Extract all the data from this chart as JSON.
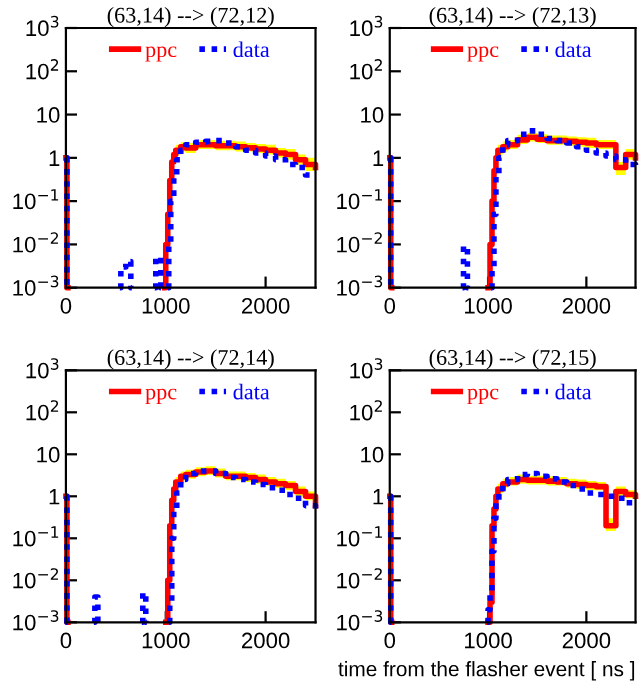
{
  "chart_data": [
    {
      "type": "step",
      "title": "(63,14) --> (72,12)",
      "xlim": [
        0,
        2500
      ],
      "xticks": [
        0,
        1000,
        2000
      ],
      "ylim": [
        0.001,
        1000
      ],
      "log": true,
      "legend": "top",
      "yticks": [
        {
          "value": 0.001,
          "label": "10$^{−3}$"
        },
        {
          "value": 0.01,
          "label": "10$^{−2}$"
        },
        {
          "value": 0.1,
          "label": "10$^{−1}$"
        },
        1,
        10,
        {
          "value": 100,
          "label": "10$^{2}$"
        },
        {
          "value": 1000,
          "label": "10$^{3}$"
        }
      ],
      "series": [
        {
          "name": "ppc",
          "color": "#ff0000",
          "line_style": "solid",
          "x": [
            0,
            10,
            20,
            990,
            1000,
            1020,
            1040,
            1060,
            1080,
            1100,
            1150,
            1200,
            1300,
            1400,
            1500,
            1600,
            1700,
            1800,
            1900,
            2000,
            2100,
            2200,
            2300,
            2400,
            2500
          ],
          "values": [
            1,
            0.001,
            null,
            0.001,
            0.01,
            0.05,
            0.3,
            0.8,
            1.2,
            1.5,
            1.8,
            1.7,
            2,
            2,
            1.9,
            1.9,
            1.8,
            1.7,
            1.6,
            1.5,
            1.3,
            1.2,
            0.9,
            0.7,
            0.6
          ],
          "lower": [
            null,
            null,
            null,
            null,
            null,
            null,
            0.2,
            0.6,
            0.9,
            1.2,
            1.4,
            1.3,
            1.6,
            1.6,
            1.5,
            1.5,
            1.4,
            1.4,
            1.3,
            1.2,
            1,
            0.9,
            0.7,
            0.5,
            0.4
          ],
          "upper": [
            null,
            null,
            null,
            null,
            null,
            null,
            0.4,
            1,
            1.6,
            2,
            2.3,
            2.2,
            2.6,
            2.6,
            2.5,
            2.5,
            2.4,
            2.2,
            2.1,
            2,
            1.7,
            1.6,
            1.2,
            1,
            0.8
          ]
        },
        {
          "name": "data",
          "color": "#0000ff",
          "line_style": "dotted",
          "x": [
            0,
            10,
            20,
            540,
            550,
            600,
            650,
            660,
            890,
            900,
            950,
            960,
            1020,
            1030,
            1050,
            1080,
            1110,
            1150,
            1200,
            1300,
            1400,
            1500,
            1600,
            1700,
            1800,
            1900,
            2000,
            2100,
            2200,
            2300,
            2400,
            2500
          ],
          "values": [
            1,
            0.001,
            null,
            0.001,
            0.003,
            0.004,
            0.001,
            null,
            0.001,
            0.005,
            0.001,
            null,
            0.001,
            0.01,
            0.1,
            0.4,
            0.9,
            1.5,
            2,
            2.3,
            2.4,
            2.5,
            2.2,
            1.8,
            1.5,
            1.3,
            1.1,
            0.9,
            0.7,
            0.6,
            0.4,
            0.4
          ]
        }
      ]
    },
    {
      "type": "step",
      "title": "(63,14) --> (72,13)",
      "xlim": [
        0,
        2500
      ],
      "xticks": [
        0,
        1000,
        2000
      ],
      "ylim": [
        0.001,
        1000
      ],
      "log": true,
      "legend": "top",
      "yticks": [
        {
          "value": 0.001,
          "label": "10$^{−3}$"
        },
        {
          "value": 0.01,
          "label": "10$^{−2}$"
        },
        {
          "value": 0.1,
          "label": "10$^{−1}$"
        },
        1,
        10,
        {
          "value": 100,
          "label": "10$^{2}$"
        },
        {
          "value": 1000,
          "label": "10$^{3}$"
        }
      ],
      "series": [
        {
          "name": "ppc",
          "color": "#ff0000",
          "line_style": "solid",
          "x": [
            0,
            10,
            20,
            1000,
            1020,
            1040,
            1060,
            1080,
            1100,
            1150,
            1200,
            1300,
            1400,
            1500,
            1600,
            1700,
            1800,
            1900,
            2000,
            2100,
            2200,
            2300,
            2400,
            2500
          ],
          "values": [
            1,
            0.001,
            null,
            0.001,
            0.01,
            0.1,
            0.5,
            1,
            1.5,
            1.8,
            2,
            2.6,
            3,
            2.7,
            2.5,
            2.5,
            2.4,
            2.3,
            2.2,
            2,
            2,
            0.6,
            1.2,
            1
          ],
          "lower": [
            null,
            null,
            null,
            null,
            null,
            0.07,
            0.4,
            0.8,
            1.2,
            1.4,
            1.6,
            2.1,
            2.4,
            2.2,
            2,
            2,
            1.9,
            1.8,
            1.7,
            1.6,
            1.6,
            0.4,
            0.9,
            0.8
          ],
          "upper": [
            null,
            null,
            null,
            null,
            null,
            0.15,
            0.7,
            1.4,
            2,
            2.4,
            2.6,
            3.4,
            3.8,
            3.5,
            3.3,
            3.3,
            3.1,
            3,
            2.9,
            2.6,
            2.6,
            0.8,
            1.6,
            1.3
          ]
        },
        {
          "name": "data",
          "color": "#0000ff",
          "line_style": "dotted",
          "x": [
            0,
            10,
            20,
            740,
            750,
            790,
            800,
            1030,
            1040,
            1060,
            1080,
            1110,
            1150,
            1200,
            1300,
            1400,
            1500,
            1600,
            1700,
            1800,
            1900,
            2000,
            2100,
            2200,
            2300,
            2400,
            2500
          ],
          "values": [
            1,
            0.001,
            null,
            0.001,
            0.009,
            0.001,
            null,
            0.001,
            0.003,
            0.05,
            0.4,
            1,
            2,
            2.5,
            3.5,
            4.2,
            3.5,
            2.8,
            2.5,
            2.2,
            1.8,
            1.5,
            1.3,
            1.1,
            0.9,
            0.7,
            0.6
          ]
        }
      ]
    },
    {
      "type": "step",
      "title": "(63,14) --> (72,14)",
      "xlim": [
        0,
        2500
      ],
      "xticks": [
        0,
        1000,
        2000
      ],
      "ylim": [
        0.001,
        1000
      ],
      "log": true,
      "legend": "top",
      "yticks": [
        {
          "value": 0.001,
          "label": "10$^{−3}$"
        },
        {
          "value": 0.01,
          "label": "10$^{−2}$"
        },
        {
          "value": 0.1,
          "label": "10$^{−1}$"
        },
        1,
        10,
        {
          "value": 100,
          "label": "10$^{2}$"
        },
        {
          "value": 1000,
          "label": "10$^{3}$"
        }
      ],
      "series": [
        {
          "name": "ppc",
          "color": "#ff0000",
          "line_style": "solid",
          "x": [
            0,
            10,
            20,
            1000,
            1020,
            1040,
            1060,
            1080,
            1100,
            1150,
            1200,
            1300,
            1400,
            1500,
            1600,
            1700,
            1800,
            1900,
            2000,
            2100,
            2200,
            2300,
            2400,
            2500
          ],
          "values": [
            1,
            0.001,
            null,
            0.001,
            0.01,
            0.2,
            0.8,
            1.5,
            2.2,
            3,
            3.3,
            3.8,
            4,
            3.5,
            3,
            3,
            2.8,
            2.5,
            2.2,
            2,
            1.8,
            1.3,
            1,
            0.6
          ],
          "lower": [
            null,
            null,
            null,
            null,
            null,
            0.15,
            0.6,
            1.2,
            1.8,
            2.4,
            2.6,
            3,
            3.2,
            2.8,
            2.4,
            2.4,
            2.2,
            2,
            1.8,
            1.6,
            1.4,
            1,
            0.8,
            0.5
          ],
          "upper": [
            null,
            null,
            null,
            null,
            null,
            0.3,
            1.1,
            2,
            2.9,
            3.9,
            4.3,
            4.9,
            5.2,
            4.6,
            3.9,
            3.9,
            3.6,
            3.3,
            2.9,
            2.6,
            2.3,
            1.7,
            1.3,
            0.8
          ]
        },
        {
          "name": "data",
          "color": "#0000ff",
          "line_style": "dotted",
          "x": [
            0,
            10,
            20,
            280,
            290,
            320,
            330,
            760,
            770,
            800,
            810,
            1030,
            1040,
            1060,
            1080,
            1110,
            1150,
            1200,
            1300,
            1400,
            1500,
            1600,
            1700,
            1800,
            1900,
            2000,
            2100,
            2200,
            2300,
            2400,
            2500
          ],
          "values": [
            1,
            0.001,
            null,
            0.001,
            0.004,
            0.001,
            null,
            0.001,
            0.005,
            0.001,
            null,
            0.001,
            0.003,
            0.1,
            0.5,
            1.2,
            2.5,
            3.5,
            4,
            4,
            3.5,
            2.8,
            2.5,
            2.2,
            1.9,
            1.6,
            1.4,
            1.1,
            0.9,
            0.6,
            0.4
          ]
        }
      ]
    },
    {
      "type": "step",
      "title": "(63,14) --> (72,15)",
      "xlabel": "time from the flasher event [ ns ]",
      "xlim": [
        0,
        2500
      ],
      "xticks": [
        0,
        1000,
        2000
      ],
      "ylim": [
        0.001,
        1000
      ],
      "log": true,
      "legend": "top",
      "yticks": [
        {
          "value": 0.001,
          "label": "10$^{−3}$"
        },
        {
          "value": 0.01,
          "label": "10$^{−2}$"
        },
        {
          "value": 0.1,
          "label": "10$^{−1}$"
        },
        1,
        10,
        {
          "value": 100,
          "label": "10$^{2}$"
        },
        {
          "value": 1000,
          "label": "10$^{3}$"
        }
      ],
      "series": [
        {
          "name": "ppc",
          "color": "#ff0000",
          "line_style": "solid",
          "x": [
            0,
            10,
            20,
            1000,
            1020,
            1040,
            1060,
            1080,
            1100,
            1150,
            1200,
            1300,
            1400,
            1500,
            1600,
            1700,
            1800,
            1900,
            2000,
            2100,
            2200,
            2300,
            2400,
            2500
          ],
          "values": [
            1,
            0.001,
            null,
            0.001,
            0.003,
            0.2,
            0.5,
            1,
            1.5,
            2,
            2.2,
            2.5,
            2.4,
            2.4,
            2.3,
            2.2,
            2,
            1.9,
            1.8,
            1.7,
            0.2,
            1.3,
            1.1,
            1
          ],
          "lower": [
            null,
            null,
            null,
            null,
            null,
            0.15,
            0.4,
            0.8,
            1.2,
            1.6,
            1.8,
            2,
            1.9,
            1.9,
            1.8,
            1.8,
            1.6,
            1.5,
            1.4,
            1.4,
            0.15,
            1,
            0.9,
            0.8
          ],
          "upper": [
            null,
            null,
            null,
            null,
            null,
            0.3,
            0.7,
            1.3,
            2,
            2.6,
            2.9,
            3.3,
            3.1,
            3.1,
            3,
            2.9,
            2.6,
            2.5,
            2.3,
            2.2,
            0.3,
            1.7,
            1.4,
            1.3
          ]
        },
        {
          "name": "data",
          "color": "#0000ff",
          "line_style": "dotted",
          "x": [
            0,
            10,
            20,
            990,
            1000,
            1020,
            1040,
            1060,
            1080,
            1110,
            1150,
            1200,
            1300,
            1400,
            1500,
            1600,
            1700,
            1800,
            1900,
            2000,
            2100,
            2200,
            2300,
            2400,
            2500
          ],
          "values": [
            1,
            0.001,
            null,
            0.001,
            0.002,
            0.005,
            0.05,
            0.3,
            0.8,
            1.2,
            2,
            2.5,
            3.3,
            3.5,
            3,
            2.6,
            2.2,
            1.8,
            1.5,
            1.2,
            1.1,
            1,
            0.9,
            0.7,
            0.6
          ]
        }
      ]
    }
  ]
}
